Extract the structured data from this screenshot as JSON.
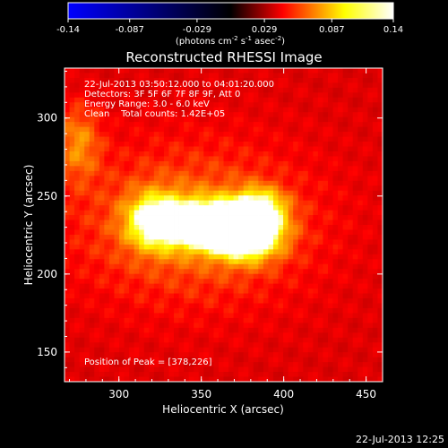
{
  "colorbar": {
    "tick_labels": [
      "-0.14",
      "-0.087",
      "-0.029",
      "0.029",
      "0.087",
      "0.14"
    ],
    "unit_label": "(photons cm",
    "unit_exp1": "-2",
    "unit_mid": " s",
    "unit_exp2": "-1",
    "unit_end": " asec",
    "unit_exp3": "-2",
    "unit_close": ")",
    "range": [
      -0.14,
      0.14
    ],
    "colors": [
      "#0000ff",
      "#000000",
      "#ff0000",
      "#ffff00",
      "#ffffff"
    ]
  },
  "chart_data": {
    "type": "heatmap",
    "title": "Reconstructed RHESSI Image",
    "xlabel": "Heliocentric X (arcsec)",
    "ylabel": "Heliocentric Y (arcsec)",
    "xlim": [
      267,
      460
    ],
    "ylim": [
      131,
      332
    ],
    "x_ticks": [
      300,
      350,
      400,
      450
    ],
    "y_ticks": [
      150,
      200,
      250,
      300
    ],
    "annotations": [
      "22-Jul-2013 03:50:12.000 to 04:01:20.000",
      "Detectors: 3F 5F 6F 7F 8F 9F, Att 0",
      "Energy Range: 3.0 - 6.0 keV",
      "Clean    Total counts: 1.42E+05"
    ],
    "peak_label": "Position of Peak = [378,226]",
    "peak": [
      378,
      226
    ],
    "sources": [
      {
        "x": 378,
        "y": 226,
        "sx": 14,
        "sy": 11,
        "amp": 0.14
      },
      {
        "x": 352,
        "y": 232,
        "sx": 14,
        "sy": 10,
        "amp": 0.13
      },
      {
        "x": 322,
        "y": 234,
        "sx": 12,
        "sy": 12,
        "amp": 0.095
      },
      {
        "x": 385,
        "y": 242,
        "sx": 11,
        "sy": 9,
        "amp": 0.08
      },
      {
        "x": 345,
        "y": 232,
        "sx": 55,
        "sy": 38,
        "amp": 0.05
      },
      {
        "x": 275,
        "y": 285,
        "sx": 10,
        "sy": 18,
        "amp": 0.05
      }
    ],
    "background": 0.03
  },
  "footer": {
    "timestamp": "22-Jul-2013 12:25"
  }
}
